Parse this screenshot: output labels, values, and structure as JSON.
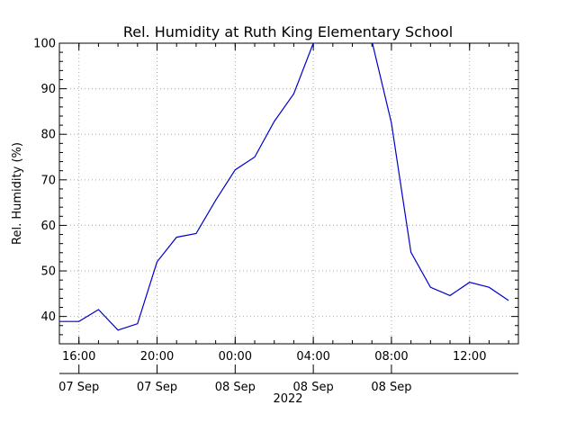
{
  "chart_data": {
    "type": "line",
    "title": "Rel. Humidity at Ruth King Elementary School",
    "xlabel": "",
    "ylabel": "Rel. Humidity (%)",
    "ylim": [
      34,
      100
    ],
    "yticks": [
      40,
      50,
      60,
      70,
      80,
      90,
      100
    ],
    "xlim": [
      "2022-09-07 15:00",
      "2022-09-08 14:30"
    ],
    "xticks_top": [
      "16:00",
      "20:00",
      "00:00",
      "04:00",
      "08:00",
      "12:00"
    ],
    "xticks_bottom": [
      {
        "label": "07 Sep",
        "time": "2022-09-07 16:00"
      },
      {
        "label": "07 Sep",
        "time": "2022-09-07 20:00"
      },
      {
        "label": "08 Sep",
        "time": "2022-09-08 00:00"
      },
      {
        "label": "08 Sep",
        "time": "2022-09-08 04:00"
      },
      {
        "label": "08 Sep",
        "time": "2022-09-08 08:00"
      }
    ],
    "year_label": "2022",
    "grid": true,
    "series": [
      {
        "color": "#0000cc",
        "x": [
          "2022-09-07 15:00",
          "2022-09-07 16:00",
          "2022-09-07 17:00",
          "2022-09-07 18:00",
          "2022-09-07 19:00",
          "2022-09-07 20:00",
          "2022-09-07 21:00",
          "2022-09-07 22:00",
          "2022-09-07 23:00",
          "2022-09-08 00:00",
          "2022-09-08 01:00",
          "2022-09-08 02:00",
          "2022-09-08 03:00",
          "2022-09-08 04:00",
          "2022-09-08 05:00",
          "2022-09-08 06:00",
          "2022-09-08 07:00",
          "2022-09-08 08:00",
          "2022-09-08 09:00",
          "2022-09-08 10:00",
          "2022-09-08 11:00",
          "2022-09-08 12:00",
          "2022-09-08 13:00",
          "2022-09-08 14:00"
        ],
        "y": [
          38.9,
          38.9,
          41.5,
          37.0,
          38.4,
          52.0,
          57.4,
          58.2,
          65.5,
          72.2,
          75.0,
          82.8,
          88.9,
          100.0,
          100.5,
          101.5,
          100.5,
          82.5,
          54.1,
          46.4,
          44.6,
          47.5,
          46.4,
          43.5
        ]
      }
    ]
  }
}
